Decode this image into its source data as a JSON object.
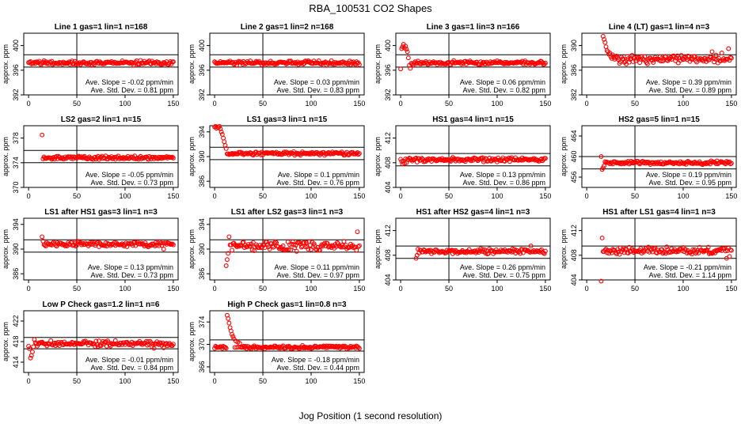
{
  "title": "RBA_100531  CO2 Shapes",
  "xlabel": "Jog Position (1 second resolution)",
  "ylabel": "approx. ppm",
  "slope_prefix": "Ave. Slope = ",
  "slope_unit": "ppm/min",
  "std_prefix": "Ave. Std. Dev. = ",
  "std_unit": "ppm",
  "marker_color": "#ff0000",
  "chart_data": [
    {
      "type": "scatter",
      "title": "Line 1 gas=1 lin=1 n=168",
      "ylim": [
        392,
        402
      ],
      "yticks": [
        "392",
        "396",
        "400"
      ],
      "hlines": [
        396.5,
        398.5
      ],
      "vline": 50,
      "slope": "-0.02",
      "std": "0.81",
      "start": 0,
      "base": 397.2,
      "noise": 0.25,
      "spikes": []
    },
    {
      "type": "scatter",
      "title": "Line 2 gas=1 lin=2 n=168",
      "ylim": [
        392,
        402
      ],
      "yticks": [
        "392",
        "396",
        "400"
      ],
      "hlines": [
        396.5,
        398.5
      ],
      "vline": 50,
      "slope": "0.03",
      "std": "0.83",
      "start": 0,
      "base": 397.2,
      "noise": 0.25,
      "spikes": []
    },
    {
      "type": "scatter",
      "title": "Line 3 gas=1 lin=3 n=166",
      "ylim": [
        392,
        402
      ],
      "yticks": [
        "392",
        "396",
        "400"
      ],
      "hlines": [
        396.5,
        398.5
      ],
      "vline": 50,
      "slope": "0.06",
      "std": "0.82",
      "start": 0,
      "base": 397.2,
      "noise": 0.25,
      "spikes": [
        [
          0,
          396.2
        ],
        [
          1,
          399.5
        ],
        [
          2,
          399.8
        ],
        [
          3,
          400.2
        ],
        [
          4,
          399.6
        ],
        [
          5,
          399.9
        ],
        [
          6,
          399.4
        ],
        [
          7,
          399.0
        ],
        [
          8,
          398.0
        ],
        [
          9,
          396.8
        ],
        [
          10,
          396.3
        ]
      ]
    },
    {
      "type": "scatter",
      "title": "Line 4 (LT) gas=1 lin=4 n=3",
      "ylim": [
        382,
        392
      ],
      "yticks": [
        "382",
        "386",
        "390"
      ],
      "hlines": [
        386.5,
        388.5
      ],
      "vline": 50,
      "slope": "0.39",
      "std": "0.89",
      "start": 17,
      "base": 387.8,
      "noise": 0.55,
      "spikes": [
        [
          17,
          391.5
        ],
        [
          18,
          391.0
        ],
        [
          19,
          390.5
        ],
        [
          20,
          389.8
        ],
        [
          21,
          389.2
        ],
        [
          22,
          389.0
        ],
        [
          23,
          388.6
        ],
        [
          24,
          388.8
        ],
        [
          25,
          388.2
        ],
        [
          27,
          388.5
        ],
        [
          130,
          389.0
        ],
        [
          140,
          388.8
        ],
        [
          147,
          389.5
        ]
      ]
    },
    {
      "type": "scatter",
      "title": "LS2 gas=2 lin=1 n=15",
      "ylim": [
        370,
        380
      ],
      "yticks": [
        "370",
        "374",
        "378"
      ],
      "hlines": [
        374,
        376
      ],
      "vline": 50,
      "slope": "-0.05",
      "std": "0.73",
      "start": 14,
      "base": 374.8,
      "noise": 0.2,
      "spikes": [
        [
          14,
          378.5
        ]
      ]
    },
    {
      "type": "scatter",
      "title": "LS1 gas=3 lin=1 n=15",
      "ylim": [
        385,
        395
      ],
      "yticks": [
        "386",
        "390",
        "394"
      ],
      "hlines": [
        389.5,
        391.5
      ],
      "vline": 50,
      "slope": "0.1",
      "std": "0.76",
      "start": 0,
      "base": 390.5,
      "noise": 0.2,
      "spikes": [
        [
          0,
          394.8
        ],
        [
          1,
          394.9
        ],
        [
          2,
          394.6
        ],
        [
          3,
          394.8
        ],
        [
          4,
          394.7
        ],
        [
          5,
          394.9
        ],
        [
          6,
          394.5
        ],
        [
          7,
          394.0
        ],
        [
          8,
          393.6
        ],
        [
          9,
          393.0
        ],
        [
          10,
          392.4
        ],
        [
          11,
          391.8
        ],
        [
          12,
          391.3
        ]
      ]
    },
    {
      "type": "scatter",
      "title": "HS1 gas=4 lin=1 n=15",
      "ylim": [
        404,
        414
      ],
      "yticks": [
        "404",
        "408",
        "412"
      ],
      "hlines": [
        407.5,
        409.5
      ],
      "vline": 50,
      "slope": "0.13",
      "std": "0.86",
      "start": 0,
      "base": 408.5,
      "noise": 0.25,
      "spikes": [
        [
          2,
          407.8
        ],
        [
          4,
          407.9
        ],
        [
          6,
          408.0
        ]
      ]
    },
    {
      "type": "scatter",
      "title": "HS2 gas=5 lin=1 n=15",
      "ylim": [
        454,
        466
      ],
      "yticks": [
        "456",
        "460",
        "464"
      ],
      "hlines": [
        457.6,
        460
      ],
      "vline": 50,
      "slope": "0.19",
      "std": "0.95",
      "start": 15,
      "base": 458.8,
      "noise": 0.25,
      "spikes": [
        [
          15,
          460.0
        ],
        [
          16,
          457.5
        ],
        [
          17,
          457.8
        ],
        [
          18,
          458.2
        ]
      ]
    },
    {
      "type": "scatter",
      "title": "LS1 after HS1 gas=3 lin=1 n=3",
      "ylim": [
        385,
        395
      ],
      "yticks": [
        "386",
        "390",
        "394"
      ],
      "hlines": [
        389.5,
        391.5
      ],
      "vline": 50,
      "slope": "0.13",
      "std": "0.73",
      "start": 14,
      "base": 390.8,
      "noise": 0.3,
      "spikes": [
        [
          14,
          392.0
        ],
        [
          15,
          391.3
        ],
        [
          140,
          390.0
        ]
      ]
    },
    {
      "type": "scatter",
      "title": "LS1 after LS2 gas=3 lin=1 n=3",
      "ylim": [
        385,
        395
      ],
      "yticks": [
        "386",
        "390",
        "394"
      ],
      "hlines": [
        389.5,
        391.5
      ],
      "vline": 50,
      "slope": "0.11",
      "std": "0.97",
      "start": 12,
      "base": 390.5,
      "noise": 0.55,
      "spikes": [
        [
          12,
          387.3
        ],
        [
          13,
          388.3
        ],
        [
          14,
          389.3
        ],
        [
          15,
          392.0
        ],
        [
          148,
          392.8
        ]
      ]
    },
    {
      "type": "scatter",
      "title": "HS1 after HS2 gas=4 lin=1 n=3",
      "ylim": [
        404,
        414
      ],
      "yticks": [
        "404",
        "408",
        "412"
      ],
      "hlines": [
        407.5,
        409.5
      ],
      "vline": 50,
      "slope": "0.26",
      "std": "0.75",
      "start": 16,
      "base": 408.6,
      "noise": 0.3,
      "spikes": [
        [
          16,
          407.5
        ],
        [
          17,
          408.0
        ],
        [
          18,
          409.0
        ],
        [
          135,
          409.5
        ]
      ]
    },
    {
      "type": "scatter",
      "title": "HS1 after LS1 gas=4 lin=1 n=3",
      "ylim": [
        404,
        414
      ],
      "yticks": [
        "404",
        "408",
        "412"
      ],
      "hlines": [
        407.5,
        409.5
      ],
      "vline": 50,
      "slope": "-0.21",
      "std": "1.14",
      "start": 15,
      "base": 408.7,
      "noise": 0.45,
      "spikes": [
        [
          15,
          403.8
        ],
        [
          16,
          410.8
        ],
        [
          17,
          408.6
        ],
        [
          145,
          407.5
        ],
        [
          148,
          407.8
        ]
      ]
    },
    {
      "type": "scatter",
      "title": "Low P Check gas=1.2 lin=1 n=6",
      "ylim": [
        412,
        424
      ],
      "yticks": [
        "414",
        "418",
        "422"
      ],
      "hlines": [
        416.6,
        418.8
      ],
      "vline": 50,
      "slope": "-0.01",
      "std": "0.84",
      "start": 0,
      "base": 417.6,
      "noise": 0.4,
      "spikes": [
        [
          1,
          416.6
        ],
        [
          2,
          414.8
        ],
        [
          3,
          415.3
        ],
        [
          4,
          416.0
        ],
        [
          5,
          417.0
        ],
        [
          6,
          418.4
        ],
        [
          130,
          416.7
        ],
        [
          140,
          416.8
        ]
      ]
    },
    {
      "type": "scatter",
      "title": "High P Check gas=1 lin=0.8 n=3",
      "ylim": [
        365,
        376
      ],
      "yticks": [
        "366",
        "370",
        "374"
      ],
      "hlines": [
        368.8,
        370.8
      ],
      "vline": 50,
      "slope": "-0.18",
      "std": "0.44",
      "start": 0,
      "base": 369.5,
      "noise": 0.2,
      "spikes": [
        [
          0,
          369.3
        ],
        [
          13,
          375.2
        ],
        [
          14,
          374.6
        ],
        [
          15,
          373.8
        ],
        [
          16,
          373.0
        ],
        [
          17,
          372.4
        ],
        [
          18,
          371.8
        ],
        [
          19,
          371.4
        ],
        [
          20,
          371.0
        ],
        [
          22,
          370.6
        ],
        [
          24,
          370.4
        ],
        [
          26,
          370.2
        ]
      ]
    }
  ]
}
